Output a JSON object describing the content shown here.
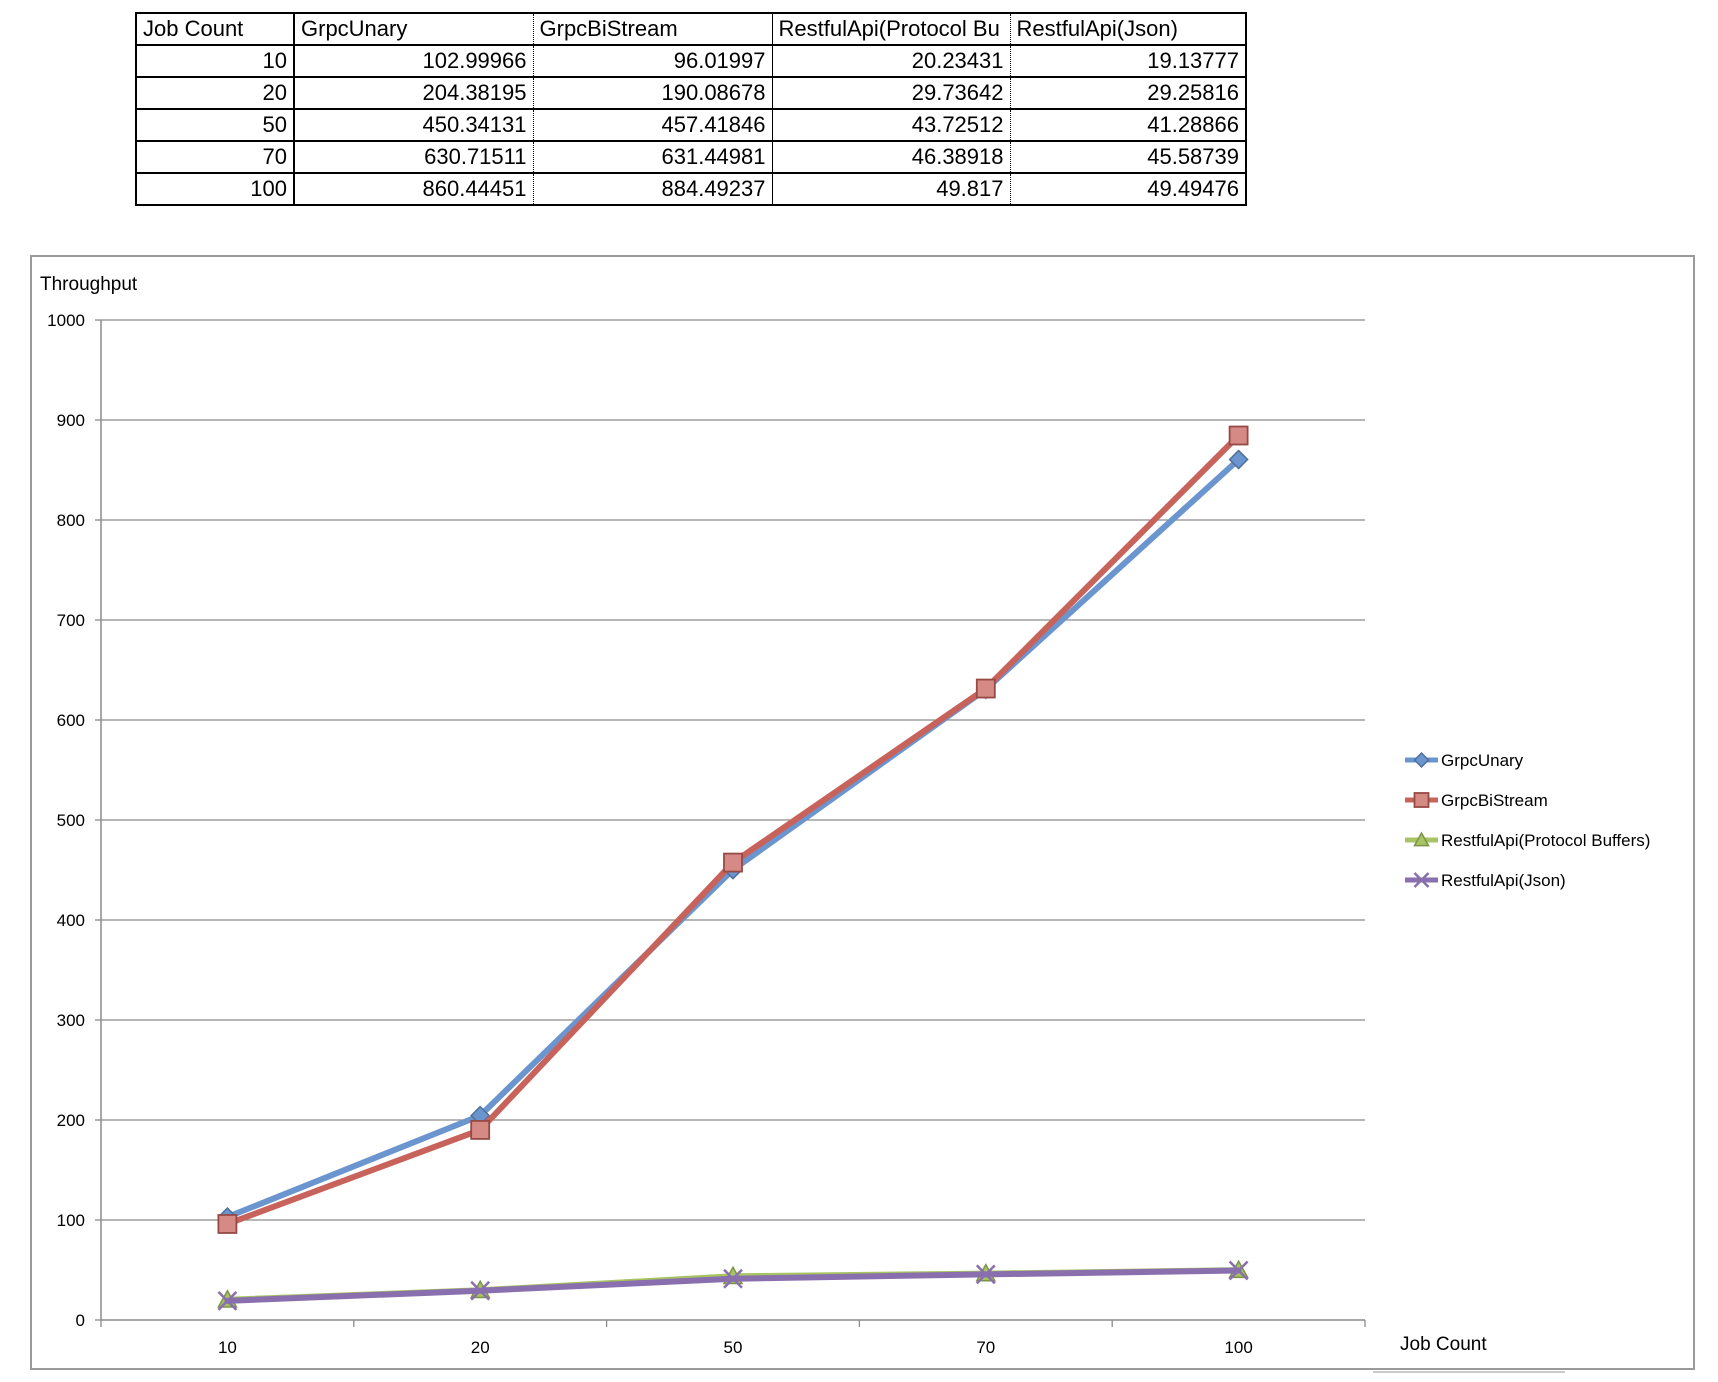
{
  "table": {
    "headers": [
      "Job Count",
      "GrpcUnary",
      "GrpcBiStream",
      "RestfulApi(Protocol Buffers)",
      "RestfulApi(Json)"
    ],
    "header_display": [
      "Job Count",
      "GrpcUnary",
      "GrpcBiStream",
      "RestfulApi(Protocol Bu",
      "RestfulApi(Json)"
    ],
    "rows": [
      [
        "10",
        "102.99966",
        "96.01997",
        "20.23431",
        "19.13777"
      ],
      [
        "20",
        "204.38195",
        "190.08678",
        "29.73642",
        "29.25816"
      ],
      [
        "50",
        "450.34131",
        "457.41846",
        "43.72512",
        "41.28866"
      ],
      [
        "70",
        "630.71511",
        "631.44981",
        "46.38918",
        "45.58739"
      ],
      [
        "100",
        "860.44451",
        "884.49237",
        "49.817",
        "49.49476"
      ]
    ]
  },
  "chart_data": {
    "type": "line",
    "title": "",
    "xlabel": "Job Count",
    "ylabel": "Throughput",
    "categories": [
      "10",
      "20",
      "50",
      "70",
      "100"
    ],
    "ylim": [
      0,
      1000
    ],
    "yticks": [
      0,
      100,
      200,
      300,
      400,
      500,
      600,
      700,
      800,
      900,
      1000
    ],
    "grid": true,
    "legend_position": "right",
    "series": [
      {
        "name": "GrpcUnary",
        "color": "#6b95cf",
        "marker": "diamond",
        "values": [
          102.99966,
          204.38195,
          450.34131,
          630.71511,
          860.44451
        ]
      },
      {
        "name": "GrpcBiStream",
        "color": "#c8635c",
        "marker": "square",
        "values": [
          96.01997,
          190.08678,
          457.41846,
          631.44981,
          884.49237
        ]
      },
      {
        "name": "RestfulApi(Protocol Buffers)",
        "color": "#a7c462",
        "marker": "triangle",
        "values": [
          20.23431,
          29.73642,
          43.72512,
          46.38918,
          49.817
        ]
      },
      {
        "name": "RestfulApi(Json)",
        "color": "#8a6fae",
        "marker": "x",
        "values": [
          19.13777,
          29.25816,
          41.28866,
          45.58739,
          49.49476
        ]
      }
    ]
  }
}
